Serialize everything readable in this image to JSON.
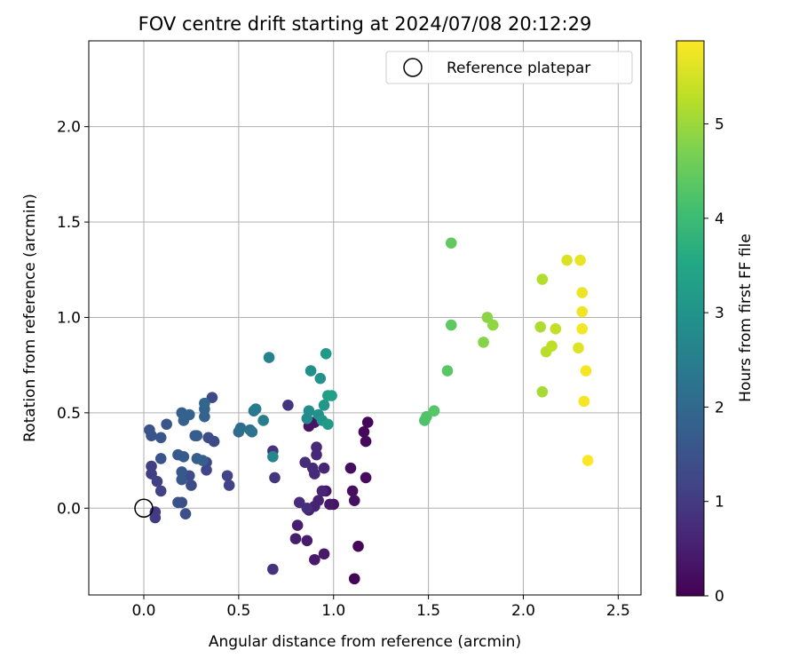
{
  "chart_data": {
    "type": "scatter",
    "title": "FOV centre drift starting at 2024/07/08 20:12:29",
    "xlabel": "Angular distance from reference (arcmin)",
    "ylabel": "Rotation from reference (arcmin)",
    "xlim": [
      -0.29,
      2.62
    ],
    "ylim": [
      -0.455,
      2.45
    ],
    "xticks": [
      0.0,
      0.5,
      1.0,
      1.5,
      2.0,
      2.5
    ],
    "xtick_labels": [
      "0.0",
      "0.5",
      "1.0",
      "1.5",
      "2.0",
      "2.5"
    ],
    "yticks": [
      0.0,
      0.5,
      1.0,
      1.5,
      2.0
    ],
    "ytick_labels": [
      "0.0",
      "0.5",
      "1.0",
      "1.5",
      "2.0"
    ],
    "grid": true,
    "legend": {
      "placement": "top-right",
      "label": "Reference platepar"
    },
    "reference_point": {
      "x": 0.0,
      "y": 0.0,
      "marker": "open-circle"
    },
    "colorbar": {
      "label": "Hours from first FF file",
      "min": 0,
      "max": 5.88,
      "ticks": [
        0,
        1,
        2,
        3,
        4,
        5
      ],
      "tick_labels": [
        "0",
        "1",
        "2",
        "3",
        "4",
        "5"
      ],
      "colormap": "viridis"
    },
    "points": [
      {
        "x": 1.11,
        "y": -0.37,
        "h": 0.05
      },
      {
        "x": 1.13,
        "y": -0.2,
        "h": 0.08
      },
      {
        "x": 1.18,
        "y": 0.45,
        "h": 0.1
      },
      {
        "x": 1.16,
        "y": 0.4,
        "h": 0.12
      },
      {
        "x": 1.17,
        "y": 0.35,
        "h": 0.15
      },
      {
        "x": 1.17,
        "y": 0.16,
        "h": 0.18
      },
      {
        "x": 1.09,
        "y": 0.21,
        "h": 0.2
      },
      {
        "x": 1.1,
        "y": 0.09,
        "h": 0.22
      },
      {
        "x": 1.11,
        "y": 0.04,
        "h": 0.25
      },
      {
        "x": 1.0,
        "y": 0.02,
        "h": 0.28
      },
      {
        "x": 0.87,
        "y": 0.43,
        "h": 0.3
      },
      {
        "x": 0.9,
        "y": 0.45,
        "h": 0.32
      },
      {
        "x": 0.96,
        "y": 0.09,
        "h": 0.35
      },
      {
        "x": 0.98,
        "y": 0.02,
        "h": 0.37
      },
      {
        "x": 0.95,
        "y": -0.24,
        "h": 0.4
      },
      {
        "x": 0.9,
        "y": -0.27,
        "h": 0.42
      },
      {
        "x": 0.86,
        "y": -0.17,
        "h": 0.45
      },
      {
        "x": 0.8,
        "y": -0.16,
        "h": 0.47
      },
      {
        "x": 0.81,
        "y": -0.09,
        "h": 0.5
      },
      {
        "x": 0.87,
        "y": -0.01,
        "h": 0.52
      },
      {
        "x": 0.9,
        "y": 0.01,
        "h": 0.55
      },
      {
        "x": 0.92,
        "y": 0.04,
        "h": 0.57
      },
      {
        "x": 0.94,
        "y": 0.09,
        "h": 0.6
      },
      {
        "x": 0.95,
        "y": 0.21,
        "h": 0.62
      },
      {
        "x": 0.91,
        "y": 0.32,
        "h": 0.65
      },
      {
        "x": 0.91,
        "y": 0.28,
        "h": 0.67
      },
      {
        "x": 0.89,
        "y": 0.21,
        "h": 0.7
      },
      {
        "x": 0.9,
        "y": 0.18,
        "h": 0.72
      },
      {
        "x": 0.85,
        "y": 0.24,
        "h": 0.75
      },
      {
        "x": 0.82,
        "y": 0.03,
        "h": 0.77
      },
      {
        "x": 0.86,
        "y": 0.0,
        "h": 0.8
      },
      {
        "x": 0.68,
        "y": -0.32,
        "h": 0.83
      },
      {
        "x": 0.68,
        "y": 0.3,
        "h": 0.86
      },
      {
        "x": 0.69,
        "y": 0.16,
        "h": 0.88
      },
      {
        "x": 0.76,
        "y": 0.54,
        "h": 0.9
      },
      {
        "x": 0.06,
        "y": -0.02,
        "h": 1.0
      },
      {
        "x": 0.06,
        "y": -0.05,
        "h": 1.03
      },
      {
        "x": 0.04,
        "y": 0.18,
        "h": 1.06
      },
      {
        "x": 0.04,
        "y": 0.22,
        "h": 1.09
      },
      {
        "x": 0.07,
        "y": 0.14,
        "h": 1.12
      },
      {
        "x": 0.09,
        "y": 0.09,
        "h": 1.15
      },
      {
        "x": 0.45,
        "y": 0.12,
        "h": 1.18
      },
      {
        "x": 0.44,
        "y": 0.17,
        "h": 1.2
      },
      {
        "x": 0.33,
        "y": 0.2,
        "h": 1.22
      },
      {
        "x": 0.33,
        "y": 0.24,
        "h": 1.25
      },
      {
        "x": 0.36,
        "y": 0.58,
        "h": 1.28
      },
      {
        "x": 0.37,
        "y": 0.35,
        "h": 1.3
      },
      {
        "x": 0.34,
        "y": 0.37,
        "h": 1.33
      },
      {
        "x": 0.25,
        "y": 0.12,
        "h": 1.35
      },
      {
        "x": 0.24,
        "y": 0.17,
        "h": 1.38
      },
      {
        "x": 0.2,
        "y": 0.03,
        "h": 1.4
      },
      {
        "x": 0.22,
        "y": -0.03,
        "h": 1.42
      },
      {
        "x": 0.18,
        "y": 0.03,
        "h": 1.45
      },
      {
        "x": 0.09,
        "y": 0.26,
        "h": 1.47
      },
      {
        "x": 0.04,
        "y": 0.38,
        "h": 1.5
      },
      {
        "x": 0.03,
        "y": 0.41,
        "h": 1.52
      },
      {
        "x": 0.09,
        "y": 0.37,
        "h": 1.55
      },
      {
        "x": 0.12,
        "y": 0.44,
        "h": 1.57
      },
      {
        "x": 0.2,
        "y": 0.15,
        "h": 1.6
      },
      {
        "x": 0.2,
        "y": 0.19,
        "h": 1.62
      },
      {
        "x": 0.18,
        "y": 0.28,
        "h": 1.65
      },
      {
        "x": 0.21,
        "y": 0.27,
        "h": 1.67
      },
      {
        "x": 0.27,
        "y": 0.38,
        "h": 1.7
      },
      {
        "x": 0.28,
        "y": 0.38,
        "h": 1.72
      },
      {
        "x": 0.28,
        "y": 0.26,
        "h": 1.74
      },
      {
        "x": 0.31,
        "y": 0.25,
        "h": 1.76
      },
      {
        "x": 0.2,
        "y": 0.5,
        "h": 1.78
      },
      {
        "x": 0.24,
        "y": 0.49,
        "h": 1.8
      },
      {
        "x": 0.21,
        "y": 0.46,
        "h": 1.83
      },
      {
        "x": 0.32,
        "y": 0.48,
        "h": 1.86
      },
      {
        "x": 0.32,
        "y": 0.52,
        "h": 1.89
      },
      {
        "x": 0.32,
        "y": 0.55,
        "h": 1.92
      },
      {
        "x": 0.5,
        "y": 0.4,
        "h": 2.05
      },
      {
        "x": 0.51,
        "y": 0.42,
        "h": 2.1
      },
      {
        "x": 0.56,
        "y": 0.41,
        "h": 2.15
      },
      {
        "x": 0.57,
        "y": 0.4,
        "h": 2.2
      },
      {
        "x": 0.58,
        "y": 0.51,
        "h": 2.3
      },
      {
        "x": 0.59,
        "y": 0.52,
        "h": 2.4
      },
      {
        "x": 0.63,
        "y": 0.46,
        "h": 2.5
      },
      {
        "x": 0.66,
        "y": 0.79,
        "h": 2.6
      },
      {
        "x": 0.68,
        "y": 0.27,
        "h": 2.7
      },
      {
        "x": 0.86,
        "y": 0.47,
        "h": 2.8
      },
      {
        "x": 0.87,
        "y": 0.51,
        "h": 2.85
      },
      {
        "x": 0.88,
        "y": 0.72,
        "h": 2.9
      },
      {
        "x": 0.92,
        "y": 0.49,
        "h": 2.95
      },
      {
        "x": 0.93,
        "y": 0.68,
        "h": 3.0
      },
      {
        "x": 0.94,
        "y": 0.46,
        "h": 3.05
      },
      {
        "x": 0.95,
        "y": 0.54,
        "h": 3.1
      },
      {
        "x": 0.96,
        "y": 0.81,
        "h": 3.15
      },
      {
        "x": 0.97,
        "y": 0.44,
        "h": 3.2
      },
      {
        "x": 0.97,
        "y": 0.59,
        "h": 3.25
      },
      {
        "x": 0.99,
        "y": 0.59,
        "h": 3.3
      },
      {
        "x": 1.48,
        "y": 0.46,
        "h": 4.2
      },
      {
        "x": 1.49,
        "y": 0.48,
        "h": 4.25
      },
      {
        "x": 1.53,
        "y": 0.51,
        "h": 4.3
      },
      {
        "x": 1.6,
        "y": 0.72,
        "h": 4.35
      },
      {
        "x": 1.62,
        "y": 0.96,
        "h": 4.4
      },
      {
        "x": 1.62,
        "y": 1.39,
        "h": 4.45
      },
      {
        "x": 1.79,
        "y": 0.87,
        "h": 4.8
      },
      {
        "x": 1.81,
        "y": 1.0,
        "h": 4.85
      },
      {
        "x": 1.84,
        "y": 0.96,
        "h": 4.9
      },
      {
        "x": 2.1,
        "y": 0.61,
        "h": 5.1
      },
      {
        "x": 2.09,
        "y": 0.95,
        "h": 5.15
      },
      {
        "x": 2.1,
        "y": 1.2,
        "h": 5.2
      },
      {
        "x": 2.12,
        "y": 0.82,
        "h": 5.25
      },
      {
        "x": 2.15,
        "y": 0.85,
        "h": 5.3
      },
      {
        "x": 2.17,
        "y": 0.94,
        "h": 5.35
      },
      {
        "x": 2.23,
        "y": 1.3,
        "h": 5.55
      },
      {
        "x": 2.29,
        "y": 0.84,
        "h": 5.6
      },
      {
        "x": 2.3,
        "y": 1.3,
        "h": 5.7
      },
      {
        "x": 2.31,
        "y": 1.13,
        "h": 5.72
      },
      {
        "x": 2.31,
        "y": 1.03,
        "h": 5.75
      },
      {
        "x": 2.31,
        "y": 0.94,
        "h": 5.78
      },
      {
        "x": 2.32,
        "y": 0.56,
        "h": 5.8
      },
      {
        "x": 2.33,
        "y": 0.72,
        "h": 5.82
      },
      {
        "x": 2.34,
        "y": 0.25,
        "h": 5.85
      }
    ]
  }
}
